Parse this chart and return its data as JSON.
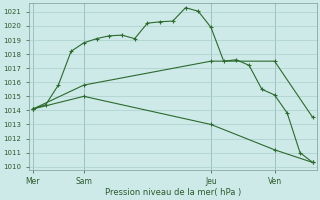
{
  "xlabel": "Pression niveau de la mer( hPa )",
  "ylim": [
    1009.8,
    1021.6
  ],
  "yticks": [
    1010,
    1011,
    1012,
    1013,
    1014,
    1015,
    1016,
    1017,
    1018,
    1019,
    1020,
    1021
  ],
  "bg_color": "#cdeae8",
  "grid_color": "#aacfcc",
  "line_color": "#2d6a2d",
  "xtick_labels": [
    "Mer",
    "Sam",
    "Jeu",
    "Ven"
  ],
  "xtick_positions": [
    0,
    4,
    14,
    19
  ],
  "vline_positions": [
    0,
    4,
    14,
    19
  ],
  "line1_x": [
    0,
    1,
    2,
    3,
    4,
    5,
    6,
    7,
    8,
    9,
    10,
    11,
    12,
    13,
    14,
    15,
    16,
    17,
    18,
    19,
    20,
    21,
    22
  ],
  "line1_y": [
    1014.1,
    1014.4,
    1015.8,
    1018.2,
    1018.8,
    1019.1,
    1019.3,
    1019.35,
    1019.1,
    1020.2,
    1020.3,
    1020.35,
    1021.3,
    1021.05,
    1019.9,
    1017.5,
    1017.6,
    1017.2,
    1015.5,
    1015.1,
    1013.8,
    1011.0,
    1010.3
  ],
  "line2_x": [
    0,
    4,
    14,
    19,
    22
  ],
  "line2_y": [
    1014.1,
    1015.8,
    1017.5,
    1017.5,
    1013.5
  ],
  "line3_x": [
    0,
    4,
    14,
    19,
    22
  ],
  "line3_y": [
    1014.1,
    1015.0,
    1013.0,
    1011.2,
    1010.3
  ],
  "n_points": 23,
  "x_max": 22
}
